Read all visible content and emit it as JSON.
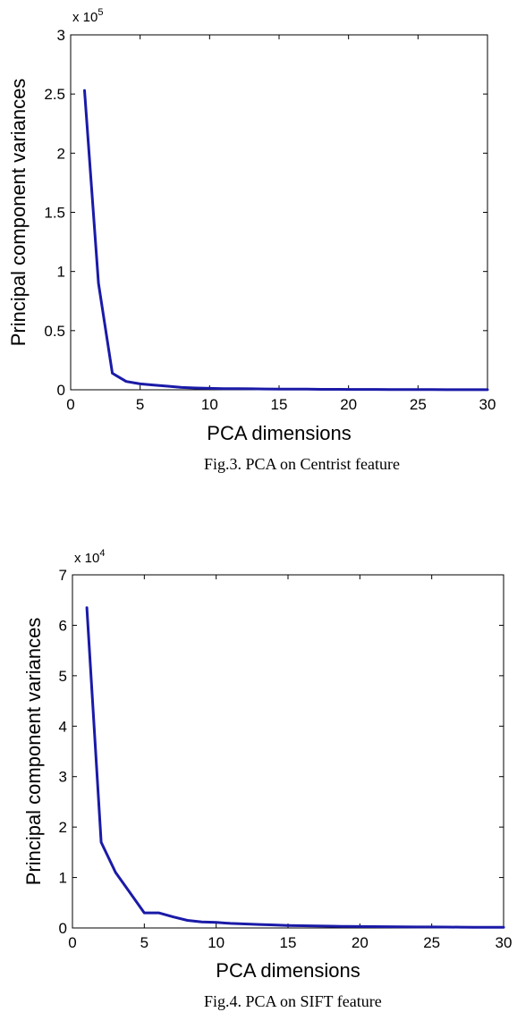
{
  "chart_data": [
    {
      "type": "line",
      "caption": "Fig.3. PCA on Centrist feature",
      "xlabel": "PCA dimensions",
      "ylabel": "Principal component variances",
      "xlim": [
        0,
        30
      ],
      "ylim": [
        0,
        300000
      ],
      "xticks": [
        "0",
        "5",
        "10",
        "15",
        "20",
        "25",
        "30"
      ],
      "yticks": [
        "0",
        "0.5",
        "1",
        "1.5",
        "2",
        "2.5",
        "3"
      ],
      "y_multiplier": {
        "base": "x 10",
        "exponent": "5"
      },
      "grid": false,
      "line_color": "#1a1aa8",
      "series": [
        {
          "x": [
            1,
            2,
            3,
            4,
            5,
            6,
            7,
            8,
            9,
            10,
            11,
            12,
            13,
            14,
            15,
            16,
            17,
            18,
            19,
            20,
            21,
            22,
            23,
            24,
            25,
            26,
            27,
            28,
            29,
            30
          ],
          "values": [
            253000,
            90000,
            14000,
            7000,
            5000,
            4000,
            3000,
            2000,
            1500,
            1200,
            1000,
            900,
            800,
            700,
            600,
            500,
            500,
            400,
            400,
            300,
            300,
            300,
            200,
            200,
            200,
            200,
            100,
            100,
            100,
            100
          ]
        }
      ]
    },
    {
      "type": "line",
      "caption": "Fig.4. PCA on SIFT feature",
      "xlabel": "PCA dimensions",
      "ylabel": "Principal component variances",
      "xlim": [
        0,
        30
      ],
      "ylim": [
        0,
        70000
      ],
      "xticks": [
        "0",
        "5",
        "10",
        "15",
        "20",
        "25",
        "30"
      ],
      "yticks": [
        "0",
        "1",
        "2",
        "3",
        "4",
        "5",
        "6",
        "7"
      ],
      "y_multiplier": {
        "base": "x 10",
        "exponent": "4"
      },
      "grid": false,
      "line_color": "#1a1aa8",
      "series": [
        {
          "x": [
            1,
            2,
            3,
            4,
            5,
            6,
            7,
            8,
            9,
            10,
            11,
            12,
            13,
            14,
            15,
            16,
            17,
            18,
            19,
            20,
            21,
            22,
            23,
            24,
            25,
            26,
            27,
            28,
            29,
            30
          ],
          "values": [
            63500,
            17000,
            11000,
            7000,
            3000,
            3000,
            2200,
            1500,
            1200,
            1100,
            900,
            800,
            700,
            600,
            500,
            450,
            400,
            350,
            300,
            280,
            260,
            240,
            220,
            200,
            200,
            180,
            160,
            150,
            140,
            130
          ]
        }
      ]
    }
  ]
}
